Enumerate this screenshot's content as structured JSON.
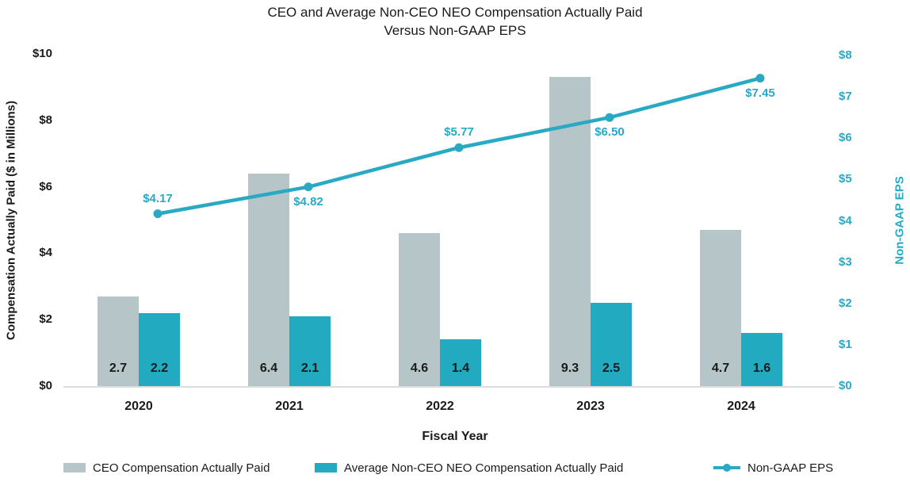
{
  "title": {
    "line1": "CEO and Average Non-CEO NEO Compensation Actually Paid",
    "line2": "Versus Non-GAAP EPS"
  },
  "axes": {
    "left": {
      "title": "Compensation Actually Paid ($ in Millions)",
      "ticks": [
        "$0",
        "$2",
        "$4",
        "$6",
        "$8",
        "$10"
      ],
      "tick_values": [
        0,
        2,
        4,
        6,
        8,
        10
      ],
      "range": [
        0,
        10
      ]
    },
    "right": {
      "title": "Non-GAAP EPS",
      "ticks": [
        "$0",
        "$1",
        "$2",
        "$3",
        "$4",
        "$5",
        "$6",
        "$7",
        "$8"
      ],
      "tick_values": [
        0,
        1,
        2,
        3,
        4,
        5,
        6,
        7,
        8
      ],
      "range": [
        0,
        8
      ]
    },
    "x": {
      "title": "Fiscal Year"
    }
  },
  "chart_data": {
    "type": "combo-bar-line",
    "categories": [
      "2020",
      "2021",
      "2022",
      "2023",
      "2024"
    ],
    "series": [
      {
        "name": "CEO Compensation Actually Paid",
        "type": "bar",
        "axis": "left",
        "color": "#b6c5c7",
        "values": [
          2.7,
          6.4,
          4.6,
          9.3,
          4.7
        ],
        "data_labels": [
          "2.7",
          "6.4",
          "4.6",
          "9.3",
          "4.7"
        ]
      },
      {
        "name": "Average Non-CEO NEO Compensation Actually Paid",
        "type": "bar",
        "axis": "left",
        "color": "#21aac0",
        "values": [
          2.2,
          2.1,
          1.4,
          2.5,
          1.6
        ],
        "data_labels": [
          "2.2",
          "2.1",
          "1.4",
          "2.5",
          "1.6"
        ]
      },
      {
        "name": "Non-GAAP EPS",
        "type": "line",
        "axis": "right",
        "color": "#29a9c4",
        "values": [
          4.17,
          4.82,
          5.77,
          6.5,
          7.45
        ],
        "data_labels": [
          "$4.17",
          "$4.82",
          "$5.77",
          "$6.50",
          "$7.45"
        ],
        "label_positions": [
          "above",
          "below",
          "above",
          "below",
          "below"
        ]
      }
    ],
    "grid": false,
    "legend_position": "bottom",
    "xlabel": "Fiscal Year",
    "ylabel_left": "Compensation Actually Paid ($ in Millions)",
    "ylabel_right": "Non-GAAP EPS",
    "ylim_left": [
      0,
      10
    ],
    "ylim_right": [
      0,
      8
    ]
  },
  "colors": {
    "ceo_bar": "#b6c5c7",
    "neo_bar": "#21aac0",
    "eps_line": "#29a9c4",
    "eps_text": "#2aa9c6",
    "axis_text": "#1a1a1a",
    "baseline": "#dcdcdc"
  }
}
